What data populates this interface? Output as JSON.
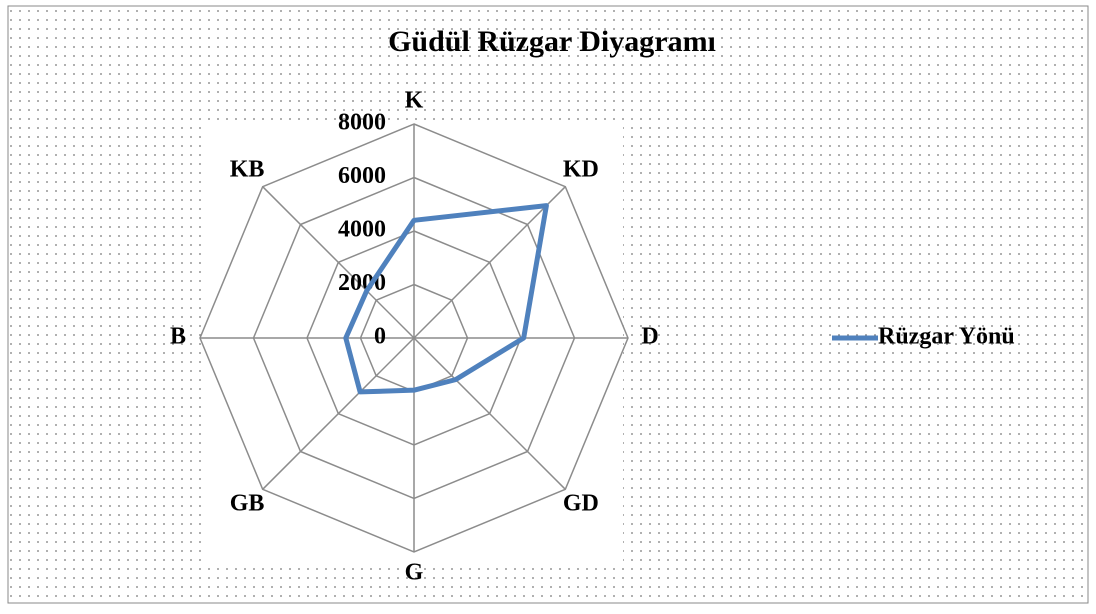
{
  "chart_data": {
    "type": "radar",
    "title": "Güdül Rüzgar Diyagramı",
    "categories": [
      "K",
      "KD",
      "D",
      "GD",
      "G",
      "GB",
      "B",
      "KB"
    ],
    "series": [
      {
        "name": "Rüzgar Yönü",
        "color": "#4f81bd",
        "values": [
          4400,
          7000,
          4100,
          2200,
          1950,
          2850,
          2550,
          2500
        ]
      }
    ],
    "ylim": [
      0,
      8000
    ],
    "yticks": [
      0,
      2000,
      4000,
      6000,
      8000
    ],
    "grid": true,
    "legend": "right"
  }
}
